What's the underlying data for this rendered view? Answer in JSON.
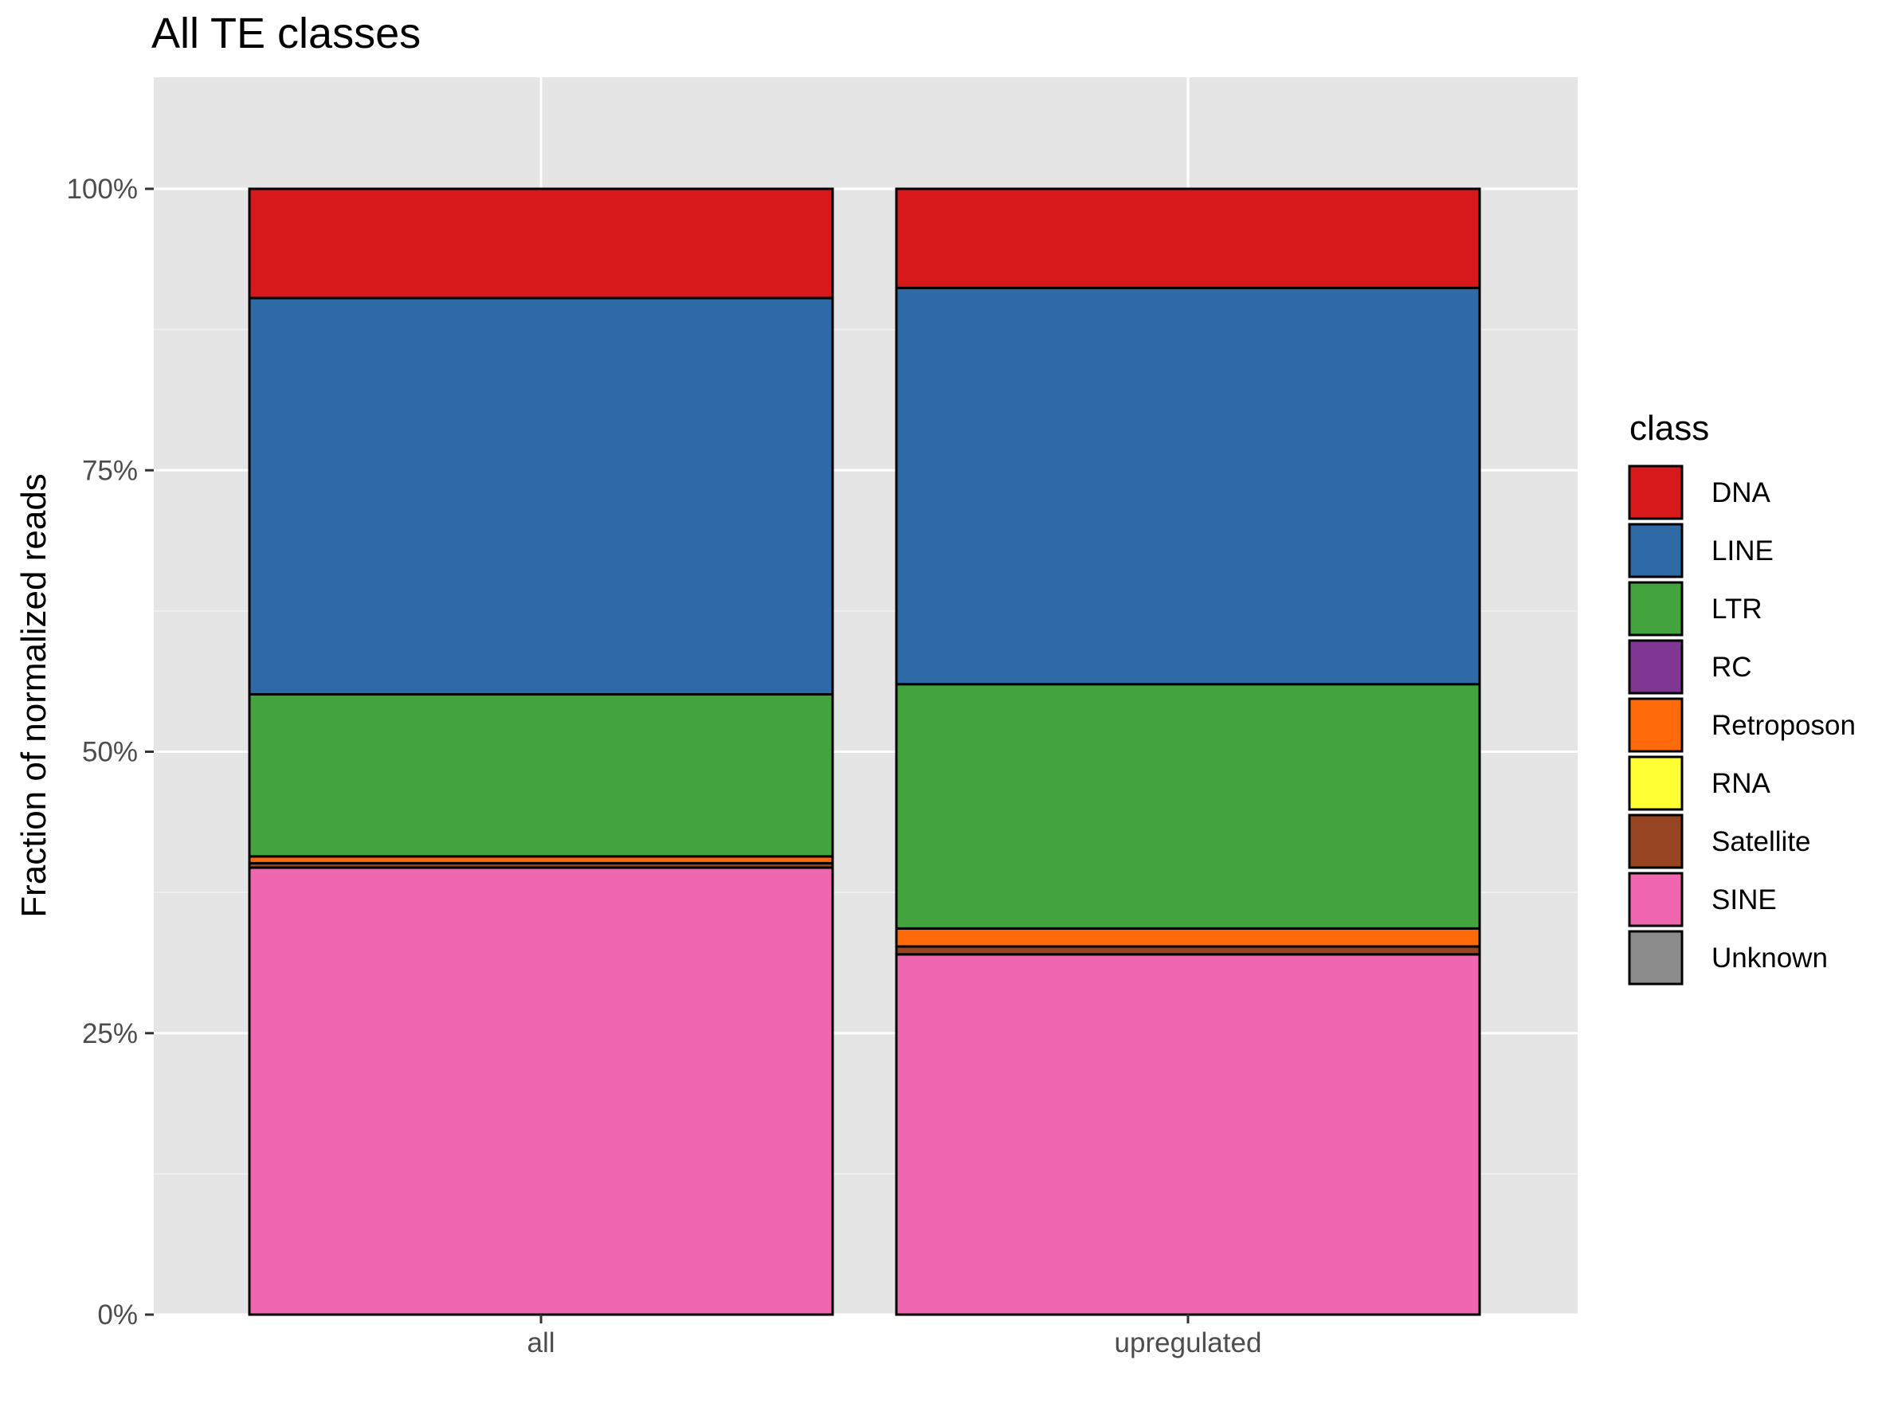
{
  "chart_data": {
    "type": "bar",
    "stacked": true,
    "title": "All TE classes",
    "xlabel": "",
    "ylabel": "Fraction of normalized reads",
    "ylim": [
      0,
      1.1
    ],
    "yticks": [
      {
        "value": 0,
        "label": "0%"
      },
      {
        "value": 0.25,
        "label": "25%"
      },
      {
        "value": 0.5,
        "label": "50%"
      },
      {
        "value": 0.75,
        "label": "75%"
      },
      {
        "value": 1.0,
        "label": "100%"
      }
    ],
    "categories": [
      "all",
      "upregulated"
    ],
    "legend_title": "class",
    "legend_position": "right",
    "grid": true,
    "panel_background": "#e5e5e5",
    "bar_outline": "#000000",
    "series": [
      {
        "name": "DNA",
        "color": "#d7191c",
        "values": [
          0.097,
          0.088
        ]
      },
      {
        "name": "LINE",
        "color": "#2e6aa6",
        "values": [
          0.352,
          0.352
        ]
      },
      {
        "name": "LTR",
        "color": "#43a33c",
        "values": [
          0.144,
          0.217
        ]
      },
      {
        "name": "RC",
        "color": "#7f3793",
        "values": [
          0.0,
          0.0
        ]
      },
      {
        "name": "Retroposon",
        "color": "#ff6a0a",
        "values": [
          0.006,
          0.016
        ]
      },
      {
        "name": "RNA",
        "color": "#ffff33",
        "values": [
          0.0,
          0.0
        ]
      },
      {
        "name": "Satellite",
        "color": "#974422",
        "values": [
          0.004,
          0.007
        ]
      },
      {
        "name": "SINE",
        "color": "#f067b0",
        "values": [
          0.397,
          0.32
        ]
      },
      {
        "name": "Unknown",
        "color": "#8c8c8c",
        "values": [
          0.0,
          0.0
        ]
      }
    ]
  }
}
